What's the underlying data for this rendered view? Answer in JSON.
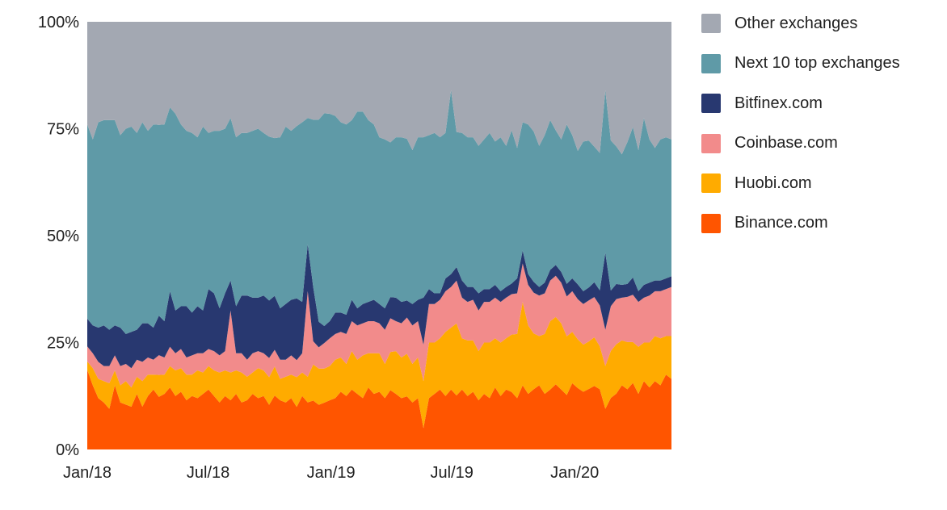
{
  "chart_data": {
    "type": "area",
    "stacked": true,
    "normalized": true,
    "title": "",
    "xlabel": "",
    "ylabel": "",
    "ylim": [
      0,
      100
    ],
    "y_ticks": [
      "0%",
      "25%",
      "50%",
      "75%",
      "100%"
    ],
    "x_ticks": [
      "Jan/18",
      "Jul/18",
      "Jan/19",
      "Jul/19",
      "Jan/20"
    ],
    "x_tick_dates": [
      "2018-01-01",
      "2018-07-01",
      "2019-01-01",
      "2019-07-01",
      "2020-01-01"
    ],
    "x_start": "2018-01-01",
    "x_end": "2020-05-25",
    "frequency": "weekly",
    "legend_position": "right",
    "grid": false,
    "series": [
      {
        "name": "Binance.com",
        "color": "#ff5500",
        "values": [
          18.6,
          15,
          12,
          11,
          9.5,
          15,
          11,
          10.5,
          10,
          13,
          10,
          12.5,
          14,
          12,
          13,
          14.5,
          12.5,
          13.5,
          11.5,
          12.5,
          12,
          13,
          14,
          12.5,
          11,
          12.5,
          11.5,
          13,
          11,
          11.5,
          13,
          12,
          12.5,
          10.5,
          13,
          11.5,
          11,
          12,
          10,
          12.5,
          11,
          9.5,
          10.5,
          11,
          11.5,
          12,
          13.5,
          12.5,
          14,
          13,
          12,
          14.5,
          13,
          13.5,
          12,
          14,
          13,
          12,
          12.5,
          11,
          12,
          5,
          12,
          13,
          14,
          12.5,
          14,
          12,
          14,
          12.5,
          13.5,
          11.5,
          13,
          12,
          14.5,
          12.5,
          14,
          13.5,
          12,
          15,
          13,
          14,
          15,
          13,
          14,
          15,
          14,
          13,
          15.5,
          14.5,
          13.5,
          14,
          15,
          14,
          9.5,
          11.5,
          13,
          15,
          14,
          15.5,
          13,
          16,
          14.5,
          16,
          15,
          17.5,
          16.5
        ]
      },
      {
        "name": "Huobi.com",
        "color": "#ffab00",
        "values": [
          2,
          4,
          4.5,
          5,
          6,
          3.5,
          4,
          5.5,
          4.5,
          4,
          6,
          5,
          3.5,
          5,
          4.5,
          5,
          6,
          5.5,
          6,
          5,
          6.5,
          5,
          5.5,
          6,
          7,
          6,
          6.5,
          5.5,
          7,
          5.5,
          5,
          7,
          6,
          6.5,
          7,
          5,
          6,
          5.5,
          7,
          5.5,
          6,
          7,
          8.5,
          8,
          8,
          9,
          8,
          7.5,
          9,
          8,
          10,
          8,
          9.5,
          9,
          8,
          9,
          10,
          9.5,
          10,
          9,
          9.5,
          11,
          13,
          12,
          12,
          15,
          14.5,
          16,
          12,
          13,
          12,
          11.5,
          12,
          13,
          11.5,
          12.5,
          12,
          13.5,
          15,
          19.5,
          16,
          13,
          11.5,
          14,
          16,
          15.5,
          15.5,
          14,
          12,
          11.5,
          11,
          11,
          11.5,
          10,
          10,
          10.5,
          11.5,
          10.5,
          11,
          9.5,
          11,
          9,
          10.5,
          10.5,
          11,
          9,
          10
        ]
      },
      {
        "name": "Coinbase.com",
        "color": "#f28b8b",
        "values": [
          3.5,
          3.5,
          4,
          3.5,
          4,
          3.5,
          4.5,
          4,
          4.5,
          4,
          4.5,
          4,
          3.5,
          4.5,
          4,
          4.5,
          4,
          4.5,
          4,
          4.5,
          4,
          4.5,
          4,
          4.5,
          4,
          4.5,
          14.5,
          4,
          4.5,
          4,
          4.5,
          4,
          4,
          4.5,
          4,
          4.5,
          4,
          4.5,
          4,
          4.5,
          20,
          4.5,
          5,
          6,
          6.5,
          6,
          6,
          7,
          7,
          8,
          7.5,
          7.5,
          7.5,
          7,
          8,
          8,
          7,
          8,
          8.5,
          9,
          8.5,
          8.5,
          9,
          9,
          9,
          9.5,
          9.5,
          9.5,
          9.5,
          9,
          9.5,
          9.5,
          9.5,
          9.5,
          9.5,
          9.5,
          9.5,
          9.5,
          9.5,
          9,
          9.5,
          9.5,
          9.5,
          9.5,
          9.5,
          9.5,
          9.5,
          9.5,
          9.5,
          9.5,
          9.5,
          9.5,
          9.5,
          9.5,
          8.5,
          10,
          10.5,
          10,
          10.5,
          11,
          10.5,
          10.5,
          11,
          10.5,
          11,
          11,
          11.5
        ]
      },
      {
        "name": "Bitfinex.com",
        "color": "#283870",
        "values": [
          6.5,
          6.5,
          8,
          9.5,
          8.5,
          7,
          9,
          7,
          8.5,
          7,
          9,
          8,
          7.5,
          9,
          8.5,
          13,
          10,
          10,
          12,
          10,
          11,
          10,
          14,
          13.5,
          11,
          13.5,
          7,
          11,
          13.5,
          15,
          13,
          12.5,
          13.5,
          13.5,
          13,
          12,
          13,
          13,
          14.5,
          12,
          11,
          10.5,
          6,
          4,
          4,
          5,
          4.5,
          4.5,
          5,
          4,
          4.5,
          4.5,
          5,
          4.5,
          5,
          5,
          5.5,
          5,
          4,
          5,
          5,
          11,
          3.5,
          2.5,
          1.5,
          3,
          3,
          3,
          4,
          3.5,
          3,
          4,
          3,
          3,
          3,
          2.5,
          2.5,
          2.5,
          3.5,
          3,
          2.5,
          2.5,
          2,
          2.5,
          2.5,
          2.5,
          2.5,
          3,
          3,
          3.5,
          3,
          3,
          3.5,
          3.5,
          18,
          3.5,
          3.5,
          3,
          3,
          4,
          2.5,
          3,
          3,
          2.5,
          2.5,
          2.5,
          2.5
        ]
      },
      {
        "name": "Next 10 top exchanges",
        "color": "#5f9aa7",
        "values": [
          45.4,
          43.5,
          48,
          48,
          49,
          48,
          45,
          48,
          48,
          46,
          47,
          45,
          47.5,
          43.5,
          46,
          43,
          46,
          42.5,
          41,
          42,
          39.5,
          43,
          36.5,
          38,
          41.5,
          38.5,
          38,
          39.5,
          38,
          38,
          39,
          39.5,
          38,
          38.5,
          38,
          40,
          41.5,
          39.5,
          40.5,
          42,
          29.5,
          32.5,
          47.5,
          50,
          48.5,
          46,
          44.5,
          44.5,
          42,
          46,
          45,
          42.5,
          41,
          39,
          39.5,
          36.5,
          37.5,
          38.5,
          38,
          36,
          38,
          37.5,
          36,
          37.5,
          36.5,
          34,
          43,
          30,
          34.5,
          35,
          35,
          34.5,
          35,
          36.5,
          33.5,
          36,
          33,
          36,
          30.5,
          30,
          35,
          35,
          33,
          34.5,
          35,
          31,
          31,
          38,
          33.5,
          31.5,
          35,
          34,
          32,
          32,
          38,
          33.5,
          32,
          30.5,
          33,
          35,
          33,
          39,
          33.5,
          31,
          33,
          33,
          32
        ]
      },
      {
        "name": "Other exchanges",
        "color": "#a3a8b2",
        "values": [
          24,
          27.5,
          23.5,
          23,
          23,
          23,
          26.5,
          25,
          24.5,
          26,
          23.5,
          25.5,
          24,
          23.5,
          24,
          20,
          21.5,
          24,
          25.5,
          26,
          27,
          24.5,
          26,
          25.5,
          25.5,
          25,
          22.5,
          27,
          26,
          26,
          25.5,
          25,
          26,
          27,
          28,
          27,
          24.5,
          25.5,
          24.5,
          23.5,
          22.5,
          19,
          23,
          21.5,
          21.5,
          22,
          23.5,
          24,
          23,
          21,
          21,
          23,
          24,
          27,
          27.5,
          28.5,
          27,
          27,
          27.5,
          30,
          27,
          27,
          26.5,
          26,
          27,
          26,
          16,
          24.5,
          26,
          27,
          27,
          29,
          27.5,
          26,
          28,
          27,
          29,
          25.5,
          29.5,
          23.5,
          24,
          25.5,
          29,
          26.5,
          23,
          25,
          27.5,
          24.5,
          26.5,
          30.5,
          28,
          27.5,
          29.5,
          30.5,
          16,
          26.5,
          29,
          31,
          28,
          24.5,
          30,
          22.5,
          27.5,
          29.5,
          27.5,
          27,
          27.5
        ]
      }
    ]
  }
}
